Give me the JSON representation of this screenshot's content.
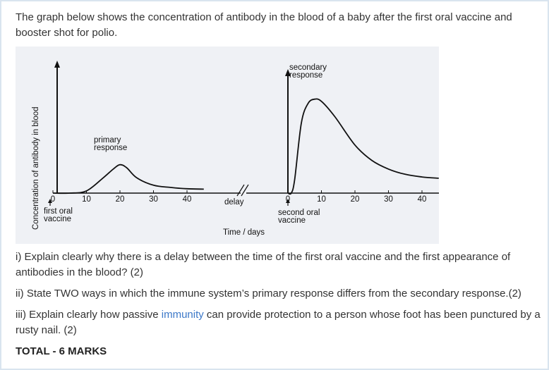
{
  "intro": "The graph below shows the concentration of antibody in the blood of a baby after the first oral vaccine and booster shot for polio.",
  "chart_data": {
    "type": "line",
    "ylabel": "Concentration of antibody in blood",
    "xlabel": "Time / days",
    "annotations": {
      "primary": "primary\nresponse",
      "secondary": "secondary\nresponse",
      "first_vaccine": "first oral\nvaccine",
      "second_vaccine": "second oral\nvaccine",
      "delay": "delay"
    },
    "segments": [
      {
        "ticks": [
          "0",
          "10",
          "20",
          "30",
          "40"
        ],
        "x": [
          0,
          5,
          10,
          15,
          18,
          20,
          22,
          25,
          30,
          35,
          40,
          45
        ],
        "values": [
          0,
          0,
          0.5,
          3.5,
          5.5,
          6.5,
          5.8,
          3.5,
          1.8,
          1.3,
          1.0,
          0.9
        ]
      },
      {
        "ticks": [
          "0",
          "10",
          "20",
          "30",
          "40"
        ],
        "x": [
          0,
          1,
          2,
          4,
          6,
          8,
          10,
          14,
          20,
          25,
          30,
          35,
          40,
          45
        ],
        "values": [
          0,
          0,
          3,
          16,
          20.5,
          21.5,
          21,
          17.5,
          11,
          7.5,
          5.5,
          4.3,
          3.7,
          3.4
        ]
      }
    ]
  },
  "questions": {
    "q1": "i) Explain clearly why there is a delay between the time of the first oral vaccine and the first appearance of antibodies in the blood? (2)",
    "q2": "ii) State TWO ways in which the immune system’s primary response differs from the secondary response.(2)",
    "q3_before": "iii) Explain clearly how passive ",
    "q3_link": "immunity",
    "q3_after": " can provide protection to a person whose foot has been punctured by a rusty nail. (2)",
    "total": "TOTAL - 6 MARKS"
  }
}
